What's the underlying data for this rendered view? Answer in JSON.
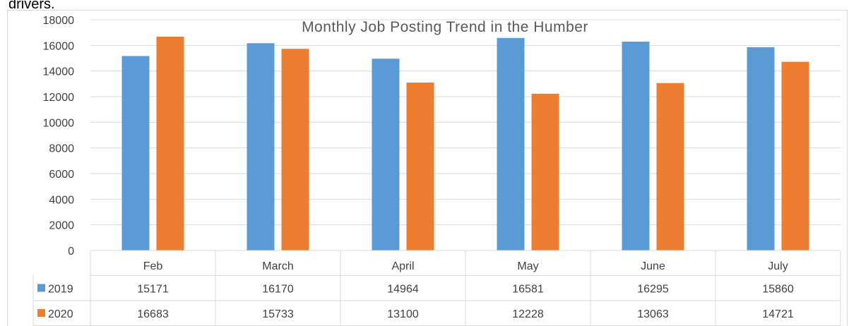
{
  "text_above": "drivers.",
  "chart_data": {
    "type": "bar",
    "title": "Monthly Job Posting Trend in the Humber",
    "categories": [
      "Feb",
      "March",
      "April",
      "May",
      "June",
      "July"
    ],
    "series": [
      {
        "name": "2019",
        "color": "#5b9bd5",
        "values": [
          15171,
          16170,
          14964,
          16581,
          16295,
          15860
        ]
      },
      {
        "name": "2020",
        "color": "#ed7d31",
        "values": [
          16683,
          15733,
          13100,
          12228,
          13063,
          14721
        ]
      }
    ],
    "ylim": [
      0,
      18000
    ],
    "yticks": [
      0,
      2000,
      4000,
      6000,
      8000,
      10000,
      12000,
      14000,
      16000,
      18000
    ],
    "grid": true,
    "data_table": true
  }
}
